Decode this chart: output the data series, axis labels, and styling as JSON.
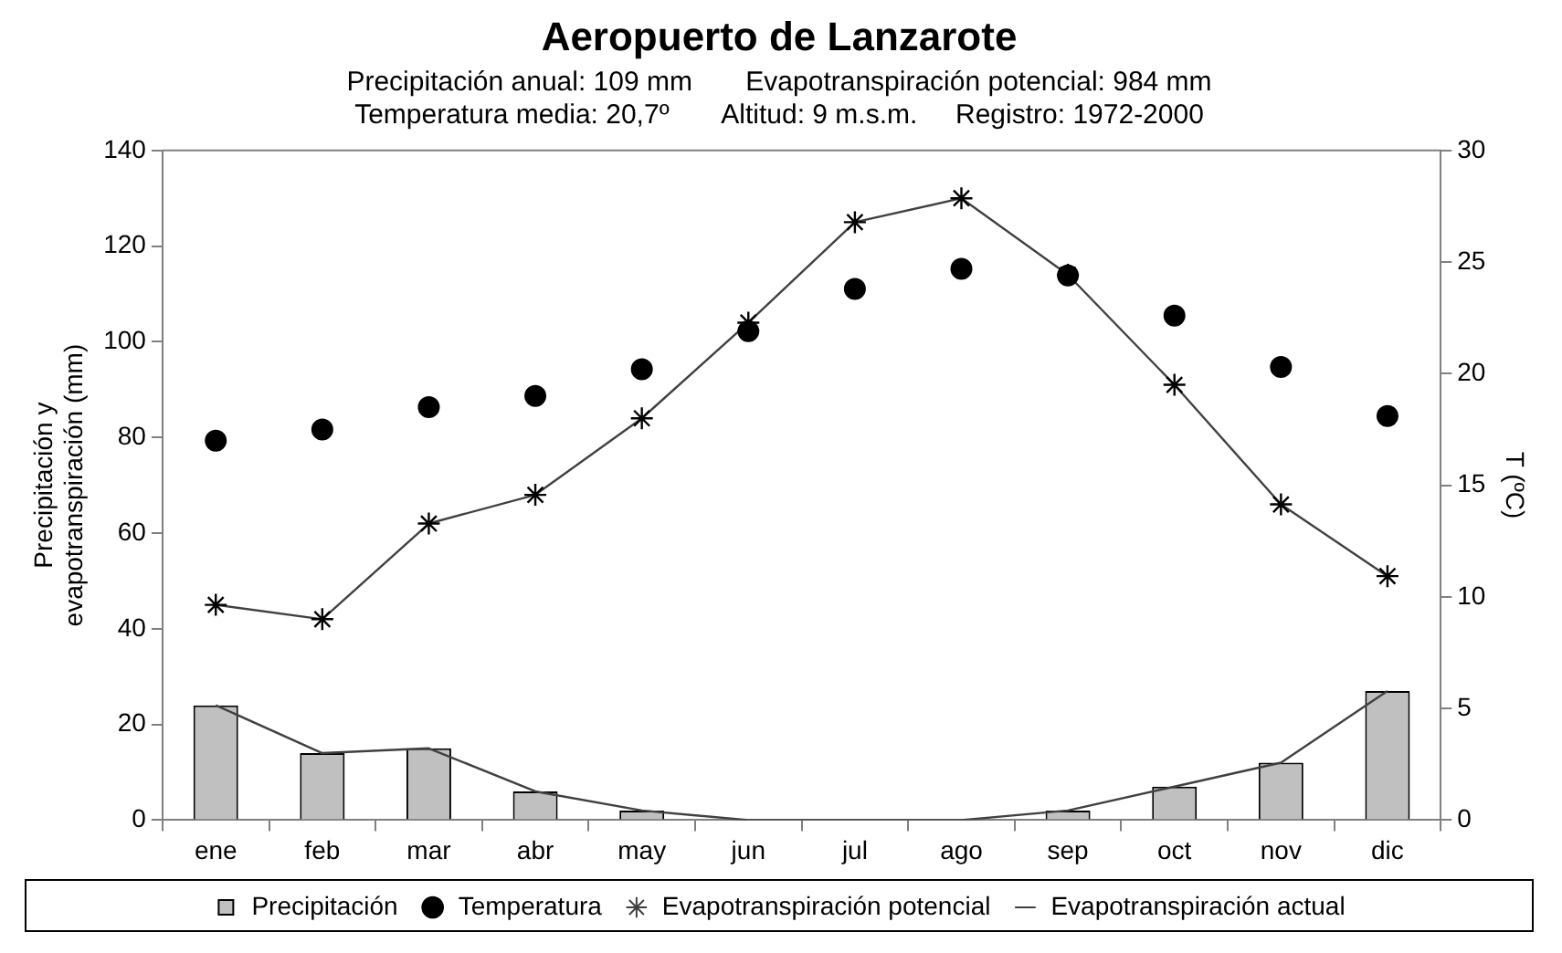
{
  "chart_data": {
    "type": "bar",
    "title": "Aeropuerto de Lanzarote",
    "subtitle": "Precipitación anual: 109 mm       Evapotranspiración potencial: 984 mm\nTemperatura media: 20,7º       Altitud: 9 m.s.m.     Registro: 1972-2000",
    "ylabel": "Precipitación y evapotranspiración (mm)",
    "y2label": "T (ºC)",
    "categories": [
      "ene",
      "feb",
      "mar",
      "abr",
      "may",
      "jun",
      "jul",
      "ago",
      "sep",
      "oct",
      "nov",
      "dic"
    ],
    "series": [
      {
        "name": "Precipitación",
        "color": "#c0c0c0",
        "values": [
          24,
          14,
          15,
          6,
          2,
          0,
          0,
          0,
          2,
          7,
          12,
          27
        ]
      },
      {
        "name": "Temperatura",
        "type": "scatter",
        "axis": "y2",
        "marker": "circle",
        "color": "#000000",
        "values": [
          17.0,
          17.5,
          18.5,
          19.0,
          20.2,
          21.9,
          23.8,
          24.7,
          24.4,
          22.6,
          20.3,
          18.1
        ]
      },
      {
        "name": "Evapotranspiración potencial",
        "type": "line",
        "marker": "cross",
        "color": "#404040",
        "values": [
          45,
          42,
          62,
          68,
          84,
          104,
          125,
          130,
          114,
          91,
          66,
          51
        ]
      },
      {
        "name": "Evapotranspiración actual",
        "type": "line",
        "marker": "none",
        "color": "#404040",
        "values": [
          24,
          14,
          15,
          6,
          2,
          0,
          0,
          0,
          2,
          7,
          12,
          27
        ]
      }
    ],
    "ylim": [
      0,
      140
    ],
    "yticks": [
      0,
      20,
      40,
      60,
      80,
      100,
      120,
      140
    ],
    "y2lim": [
      0,
      30
    ],
    "y2ticks": [
      0,
      5,
      10,
      15,
      20,
      25,
      30
    ],
    "grid": false,
    "legend": "bottom"
  }
}
